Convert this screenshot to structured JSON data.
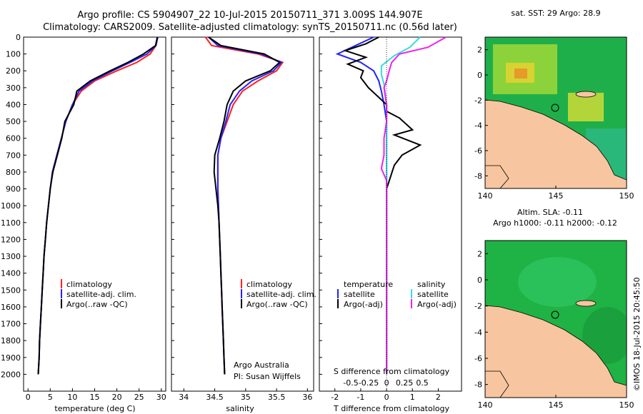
{
  "header": {
    "line1": "Argo profile: CS 5904907_22 10-Jul-2015 20150711_371 3.009S 144.907E",
    "line2": "Climatology: CARS2009. Satellite-adjusted climatology: synTS_20150711.nc (0.56d later)"
  },
  "credits": {
    "org": "Argo Australia",
    "pi": "PI: Susan Wijffels",
    "stamp": "©IMOS 18-Jul-2015 20:45:50"
  },
  "colors": {
    "climatology": "#ff2020",
    "satellite": "#2222ff",
    "argo": "#000000",
    "salinity_satellite": "#33dddd",
    "salinity_argo": "#ee22ee",
    "land": "#f7c59f",
    "sea_green": "#22bb44"
  },
  "chart_data": [
    {
      "type": "line",
      "id": "temperature",
      "xlabel": "temperature (deg C)",
      "ylabel": "",
      "xlim": [
        -1,
        31
      ],
      "ylim": [
        2100,
        0
      ],
      "xticks": [
        "0",
        "5",
        "10",
        "15",
        "20",
        "25",
        "30"
      ],
      "yticks": [
        "0",
        "100",
        "200",
        "300",
        "400",
        "500",
        "600",
        "700",
        "800",
        "900",
        "1000",
        "1100",
        "1200",
        "1300",
        "1400",
        "1500",
        "1600",
        "1700",
        "1800",
        "1900",
        "2000"
      ],
      "legend": [
        "climatology",
        "satellite-adj. clim.",
        "Argo(..raw -QC)"
      ],
      "series": [
        {
          "name": "climatology",
          "color": "#ff2020",
          "points": [
            [
              29.2,
              0
            ],
            [
              28.8,
              50
            ],
            [
              27.5,
              100
            ],
            [
              24.5,
              150
            ],
            [
              20,
              200
            ],
            [
              15,
              260
            ],
            [
              12,
              320
            ],
            [
              10,
              400
            ],
            [
              8.5,
              500
            ],
            [
              7.5,
              600
            ],
            [
              6.5,
              700
            ],
            [
              5.5,
              800
            ],
            [
              5,
              900
            ],
            [
              4.6,
              1000
            ],
            [
              4.2,
              1100
            ],
            [
              3.9,
              1200
            ],
            [
              3.6,
              1300
            ],
            [
              3.4,
              1400
            ],
            [
              3.2,
              1500
            ],
            [
              3,
              1600
            ],
            [
              2.8,
              1700
            ],
            [
              2.6,
              1800
            ],
            [
              2.5,
              1900
            ],
            [
              2.3,
              2000
            ]
          ]
        },
        {
          "name": "satellite-adj. clim.",
          "color": "#2222ff",
          "points": [
            [
              29.2,
              0
            ],
            [
              28.8,
              50
            ],
            [
              26.8,
              100
            ],
            [
              23,
              150
            ],
            [
              19,
              200
            ],
            [
              14.5,
              260
            ],
            [
              11.5,
              320
            ],
            [
              10,
              400
            ],
            [
              8.5,
              500
            ],
            [
              7.5,
              600
            ],
            [
              6.5,
              700
            ],
            [
              5.5,
              800
            ],
            [
              5,
              900
            ],
            [
              4.6,
              1000
            ],
            [
              4.2,
              1100
            ],
            [
              3.9,
              1200
            ],
            [
              3.6,
              1300
            ],
            [
              3.4,
              1400
            ],
            [
              3.2,
              1500
            ],
            [
              3,
              1600
            ],
            [
              2.8,
              1700
            ],
            [
              2.6,
              1800
            ],
            [
              2.5,
              1900
            ],
            [
              2.3,
              2000
            ]
          ]
        },
        {
          "name": "Argo(..raw -QC)",
          "color": "#000000",
          "points": [
            [
              29.1,
              0
            ],
            [
              28.7,
              50
            ],
            [
              26,
              100
            ],
            [
              22.5,
              150
            ],
            [
              18.5,
              200
            ],
            [
              14,
              260
            ],
            [
              11,
              320
            ],
            [
              10.3,
              400
            ],
            [
              8.3,
              500
            ],
            [
              7.6,
              600
            ],
            [
              6.6,
              700
            ],
            [
              5.6,
              800
            ],
            [
              5,
              900
            ],
            [
              4.6,
              1000
            ],
            [
              4.2,
              1100
            ],
            [
              3.9,
              1200
            ],
            [
              3.6,
              1300
            ],
            [
              3.4,
              1400
            ],
            [
              3.2,
              1500
            ],
            [
              3,
              1600
            ],
            [
              2.8,
              1700
            ],
            [
              2.6,
              1800
            ],
            [
              2.5,
              1900
            ],
            [
              2.3,
              2000
            ]
          ]
        }
      ]
    },
    {
      "type": "line",
      "id": "salinity",
      "xlabel": "salinity",
      "ylabel": "",
      "xlim": [
        33.8,
        36.1
      ],
      "ylim": [
        2100,
        0
      ],
      "xticks": [
        "34",
        "34.5",
        "35",
        "35.5",
        "36"
      ],
      "legend": [
        "climatology",
        "satellite-adj. clim.",
        "Argo(..raw -QC)"
      ],
      "series": [
        {
          "name": "climatology",
          "color": "#ff2020",
          "points": [
            [
              34.35,
              0
            ],
            [
              34.45,
              50
            ],
            [
              35.2,
              100
            ],
            [
              35.6,
              150
            ],
            [
              35.5,
              200
            ],
            [
              35.2,
              260
            ],
            [
              34.95,
              320
            ],
            [
              34.8,
              400
            ],
            [
              34.7,
              500
            ],
            [
              34.6,
              600
            ],
            [
              34.55,
              700
            ],
            [
              34.55,
              800
            ],
            [
              34.55,
              900
            ],
            [
              34.56,
              1000
            ],
            [
              34.57,
              1100
            ],
            [
              34.58,
              1200
            ],
            [
              34.59,
              1300
            ],
            [
              34.6,
              1400
            ],
            [
              34.61,
              1500
            ],
            [
              34.62,
              1600
            ],
            [
              34.63,
              1700
            ],
            [
              34.64,
              1800
            ],
            [
              34.65,
              1900
            ],
            [
              34.66,
              2000
            ]
          ]
        },
        {
          "name": "satellite-adj. clim.",
          "color": "#2222ff",
          "points": [
            [
              34.4,
              0
            ],
            [
              34.55,
              50
            ],
            [
              35.25,
              100
            ],
            [
              35.58,
              150
            ],
            [
              35.45,
              200
            ],
            [
              35.1,
              260
            ],
            [
              34.9,
              320
            ],
            [
              34.75,
              400
            ],
            [
              34.68,
              500
            ],
            [
              34.6,
              600
            ],
            [
              34.55,
              700
            ],
            [
              34.55,
              800
            ],
            [
              34.55,
              900
            ],
            [
              34.56,
              1000
            ],
            [
              34.57,
              1100
            ],
            [
              34.58,
              1200
            ],
            [
              34.59,
              1300
            ],
            [
              34.6,
              1400
            ],
            [
              34.61,
              1500
            ],
            [
              34.62,
              1600
            ],
            [
              34.63,
              1700
            ],
            [
              34.64,
              1800
            ],
            [
              34.65,
              1900
            ],
            [
              34.66,
              2000
            ]
          ]
        },
        {
          "name": "Argo(..raw -QC)",
          "color": "#000000",
          "points": [
            [
              34.4,
              0
            ],
            [
              34.6,
              50
            ],
            [
              35.3,
              100
            ],
            [
              35.55,
              150
            ],
            [
              35.4,
              200
            ],
            [
              35.0,
              260
            ],
            [
              34.8,
              320
            ],
            [
              34.7,
              400
            ],
            [
              34.65,
              500
            ],
            [
              34.58,
              600
            ],
            [
              34.5,
              700
            ],
            [
              34.49,
              800
            ],
            [
              34.52,
              900
            ],
            [
              34.55,
              1000
            ],
            [
              34.57,
              1100
            ],
            [
              34.58,
              1200
            ],
            [
              34.59,
              1300
            ],
            [
              34.6,
              1400
            ],
            [
              34.61,
              1500
            ],
            [
              34.62,
              1600
            ],
            [
              34.63,
              1700
            ],
            [
              34.64,
              1800
            ],
            [
              34.65,
              1900
            ],
            [
              34.66,
              2000
            ]
          ]
        }
      ]
    },
    {
      "type": "line",
      "id": "difference",
      "xlabel": "T difference from climatology",
      "x2label": "S difference from climatology",
      "xlim": [
        -2.6,
        2.9
      ],
      "ylim": [
        2100,
        0
      ],
      "xticks": [
        "-2",
        "-1",
        "0",
        "1",
        "2"
      ],
      "x2ticks": [
        "-0.5",
        "-0.25",
        "0",
        "0.25",
        "0.5"
      ],
      "legend_temperature_title": "temperature",
      "legend_salinity_title": "salinity",
      "legend": [
        "satellite",
        "Argo(-adj)",
        "satellite",
        "Argo(-adj)"
      ],
      "series": [
        {
          "name": "satellite",
          "group": "temperature",
          "color": "#2222ff",
          "points": [
            [
              -0.5,
              0
            ],
            [
              -1.2,
              50
            ],
            [
              -1.9,
              100
            ],
            [
              -1.0,
              150
            ],
            [
              -0.5,
              200
            ],
            [
              -0.3,
              260
            ],
            [
              -0.2,
              320
            ],
            [
              -0.1,
              400
            ],
            [
              0,
              500
            ],
            [
              0,
              600
            ],
            [
              0,
              700
            ],
            [
              0,
              800
            ],
            [
              0,
              900
            ],
            [
              0,
              1000
            ],
            [
              0,
              1200
            ],
            [
              0,
              1400
            ],
            [
              0,
              1600
            ],
            [
              0,
              1800
            ],
            [
              0,
              2000
            ]
          ]
        },
        {
          "name": "Argo(-adj)",
          "group": "temperature",
          "color": "#000000",
          "points": [
            [
              -0.3,
              0
            ],
            [
              -0.8,
              40
            ],
            [
              -1.6,
              80
            ],
            [
              -0.8,
              120
            ],
            [
              -1.5,
              160
            ],
            [
              -0.9,
              200
            ],
            [
              -1.0,
              240
            ],
            [
              -0.7,
              300
            ],
            [
              0,
              400
            ],
            [
              0,
              440
            ],
            [
              0.5,
              480
            ],
            [
              1.0,
              550
            ],
            [
              0.3,
              580
            ],
            [
              1.3,
              640
            ],
            [
              0.6,
              700
            ],
            [
              0.3,
              760
            ],
            [
              0,
              900
            ],
            [
              0,
              1000
            ],
            [
              0,
              1200
            ],
            [
              0,
              1400
            ],
            [
              0,
              1600
            ],
            [
              0,
              1800
            ],
            [
              0,
              2000
            ]
          ]
        },
        {
          "name": "satellite",
          "group": "salinity",
          "color": "#33dddd",
          "points": [
            [
              1.3,
              0
            ],
            [
              0.9,
              60
            ],
            [
              0.3,
              110
            ],
            [
              -0.2,
              170
            ],
            [
              -0.2,
              220
            ],
            [
              -0.1,
              280
            ],
            [
              0,
              400
            ],
            [
              0,
              600
            ],
            [
              0,
              800
            ],
            [
              0,
              1000
            ],
            [
              0,
              1400
            ],
            [
              0,
              1800
            ],
            [
              0,
              2000
            ]
          ]
        },
        {
          "name": "Argo(-adj)",
          "group": "salinity",
          "color": "#ee22ee",
          "points": [
            [
              2.3,
              0
            ],
            [
              1.6,
              60
            ],
            [
              0.5,
              100
            ],
            [
              0.2,
              150
            ],
            [
              0.1,
              200
            ],
            [
              0,
              260
            ],
            [
              -0.1,
              300
            ],
            [
              0,
              400
            ],
            [
              0,
              500
            ],
            [
              -0.1,
              600
            ],
            [
              -0.1,
              700
            ],
            [
              -0.2,
              780
            ],
            [
              0,
              850
            ],
            [
              0,
              1000
            ],
            [
              0,
              1200
            ],
            [
              0,
              1500
            ],
            [
              0,
              1800
            ],
            [
              0,
              1900
            ],
            [
              0,
              2000
            ]
          ]
        }
      ]
    },
    {
      "type": "heatmap",
      "id": "sst_map",
      "title": "sat. SST: 29 Argo: 28.9",
      "xlim": [
        140,
        150
      ],
      "ylim": [
        -9,
        3
      ],
      "xticks": [
        "140",
        "145",
        "150"
      ],
      "yticks": [
        "2",
        "0",
        "-2",
        "-4",
        "-6",
        "-8"
      ],
      "marker": [
        144.907,
        -3.009
      ]
    },
    {
      "type": "heatmap",
      "id": "sla_map",
      "title": "Altim. SLA: -0.11",
      "subtitle": "Argo h1000: -0.11 h2000: -0.12",
      "xlim": [
        140,
        150
      ],
      "ylim": [
        -9,
        3
      ],
      "xticks": [
        "140",
        "145",
        "150"
      ],
      "yticks": [
        "2",
        "0",
        "-2",
        "-4",
        "-6",
        "-8"
      ],
      "marker": [
        144.907,
        -3.009
      ]
    }
  ]
}
